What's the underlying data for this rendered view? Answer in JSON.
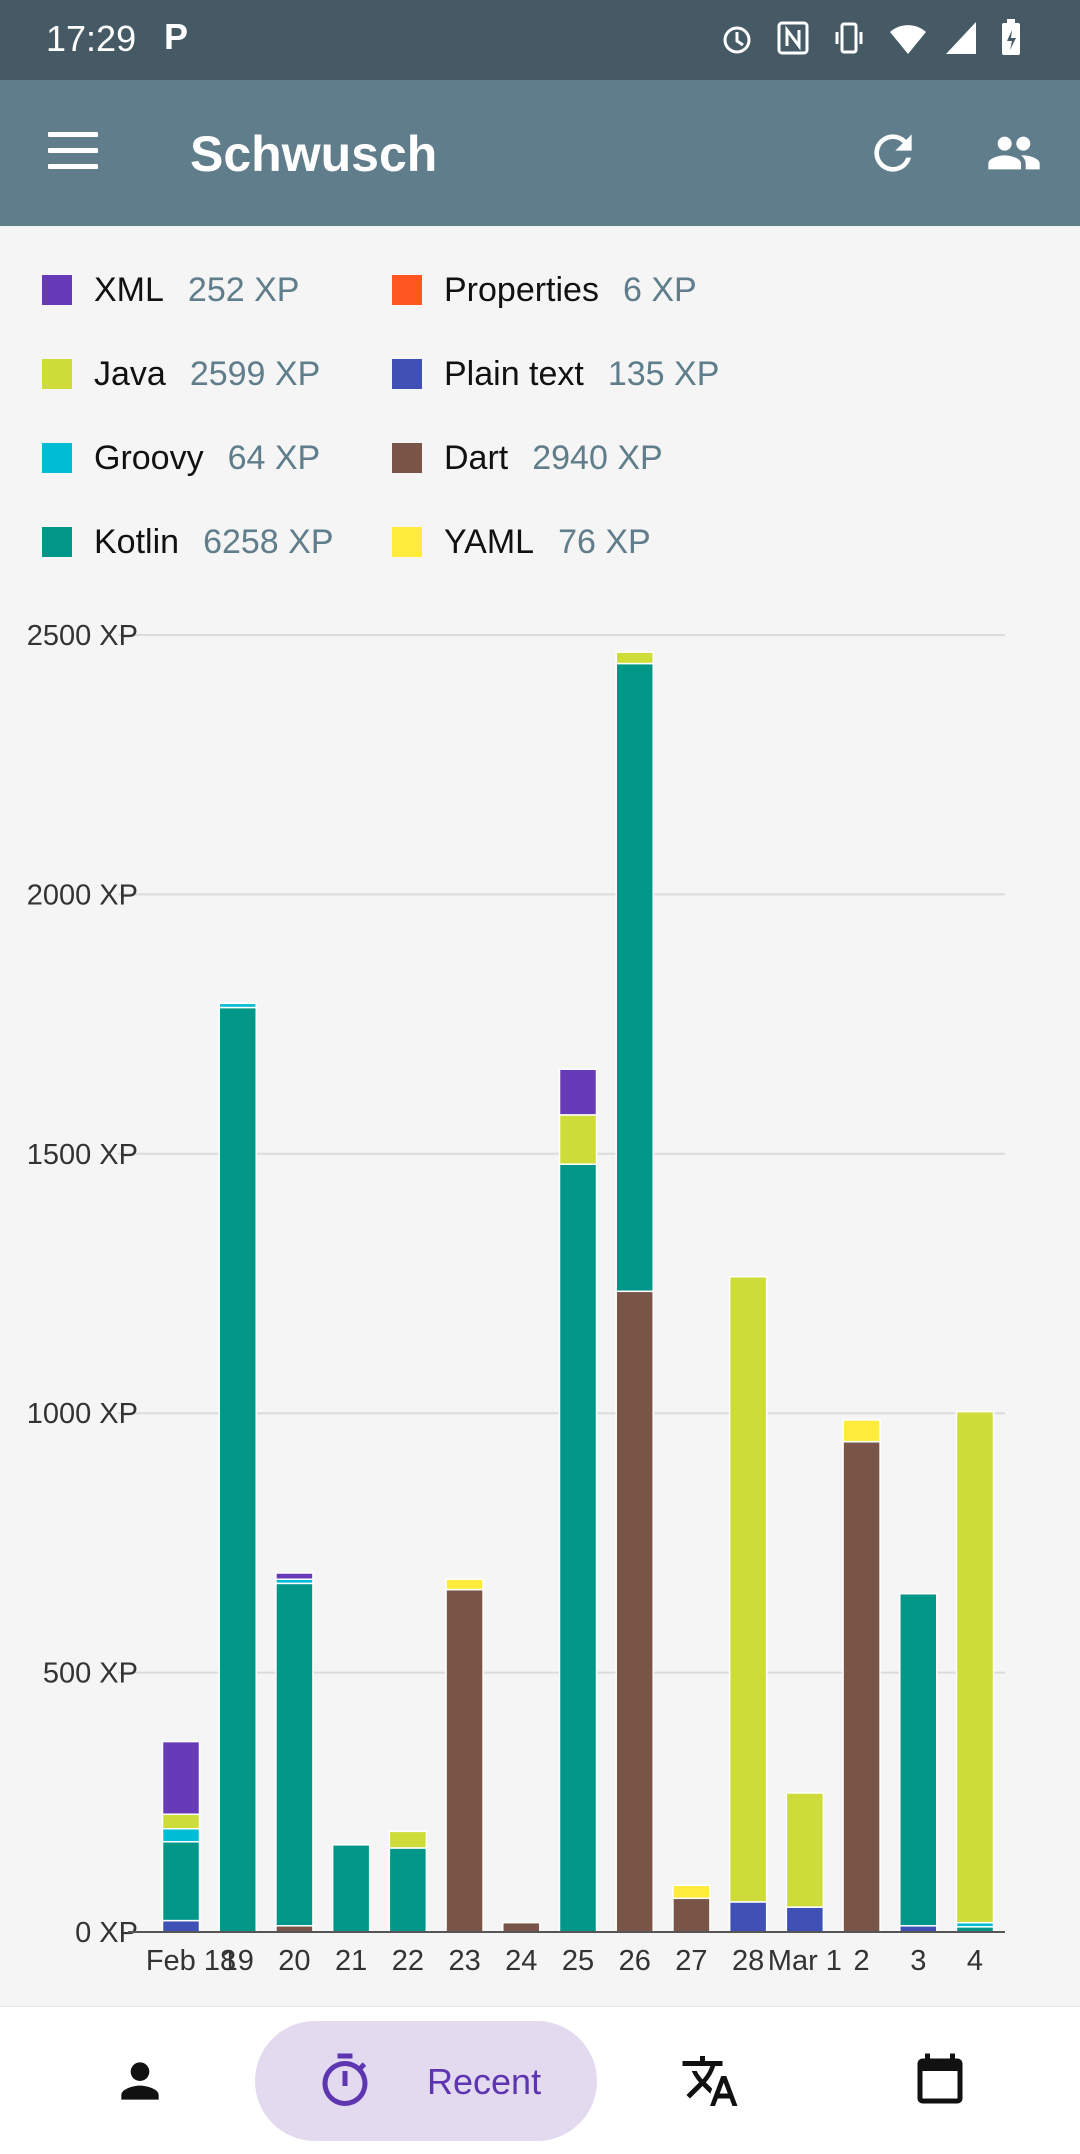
{
  "status_bar": {
    "time": "17:29",
    "p_flag": "P"
  },
  "app_bar": {
    "title": "Schwusch"
  },
  "legend": [
    {
      "name": "XML",
      "xp": "252 XP",
      "color": "#673ab7"
    },
    {
      "name": "Properties",
      "xp": "6 XP",
      "color": "#ff5722"
    },
    {
      "name": "Java",
      "xp": "2599 XP",
      "color": "#cddc39"
    },
    {
      "name": "Plain text",
      "xp": "135 XP",
      "color": "#3f51b5"
    },
    {
      "name": "Groovy",
      "xp": "64 XP",
      "color": "#00bcd4"
    },
    {
      "name": "Dart",
      "xp": "2940 XP",
      "color": "#795548"
    },
    {
      "name": "Kotlin",
      "xp": "6258 XP",
      "color": "#009688"
    },
    {
      "name": "YAML",
      "xp": "76 XP",
      "color": "#ffeb3b"
    }
  ],
  "chart_data": {
    "type": "bar",
    "stacked": true,
    "categories": [
      "Feb 18",
      "19",
      "20",
      "21",
      "22",
      "23",
      "24",
      "25",
      "26",
      "27",
      "28",
      "Mar 1",
      "2",
      "3",
      "4"
    ],
    "y_ticks": [
      "0 XP",
      "500 XP",
      "1000 XP",
      "1500 XP",
      "2000 XP",
      "2500 XP"
    ],
    "ylim": [
      0,
      2500
    ],
    "grid": true,
    "series": [
      {
        "name": "Plain text",
        "color": "#3f51b5",
        "values": [
          22,
          0,
          0,
          0,
          0,
          0,
          0,
          0,
          0,
          0,
          58,
          48,
          0,
          12,
          0
        ]
      },
      {
        "name": "Dart",
        "color": "#795548",
        "values": [
          0,
          0,
          12,
          0,
          0,
          660,
          18,
          0,
          1235,
          65,
          0,
          0,
          945,
          0,
          0
        ]
      },
      {
        "name": "YAML",
        "color": "#ffeb3b",
        "values": [
          0,
          0,
          0,
          0,
          0,
          20,
          0,
          0,
          0,
          25,
          0,
          0,
          42,
          0,
          0
        ]
      },
      {
        "name": "Kotlin",
        "color": "#009688",
        "values": [
          152,
          1782,
          660,
          168,
          162,
          0,
          0,
          1480,
          1210,
          0,
          0,
          0,
          0,
          640,
          10
        ]
      },
      {
        "name": "Groovy",
        "color": "#00bcd4",
        "values": [
          25,
          8,
          8,
          0,
          0,
          0,
          0,
          0,
          0,
          0,
          0,
          0,
          0,
          0,
          8
        ]
      },
      {
        "name": "Java",
        "color": "#cddc39",
        "values": [
          28,
          0,
          0,
          0,
          32,
          0,
          0,
          95,
          22,
          0,
          1205,
          220,
          0,
          0,
          985
        ]
      },
      {
        "name": "XML",
        "color": "#673ab7",
        "values": [
          140,
          0,
          12,
          0,
          0,
          0,
          0,
          88,
          0,
          0,
          0,
          0,
          0,
          0,
          0
        ]
      },
      {
        "name": "Properties",
        "color": "#ff5722",
        "values": [
          0,
          0,
          0,
          0,
          0,
          0,
          0,
          0,
          0,
          0,
          0,
          0,
          0,
          0,
          0
        ]
      }
    ]
  },
  "bottom_nav": {
    "recent_label": "Recent"
  }
}
